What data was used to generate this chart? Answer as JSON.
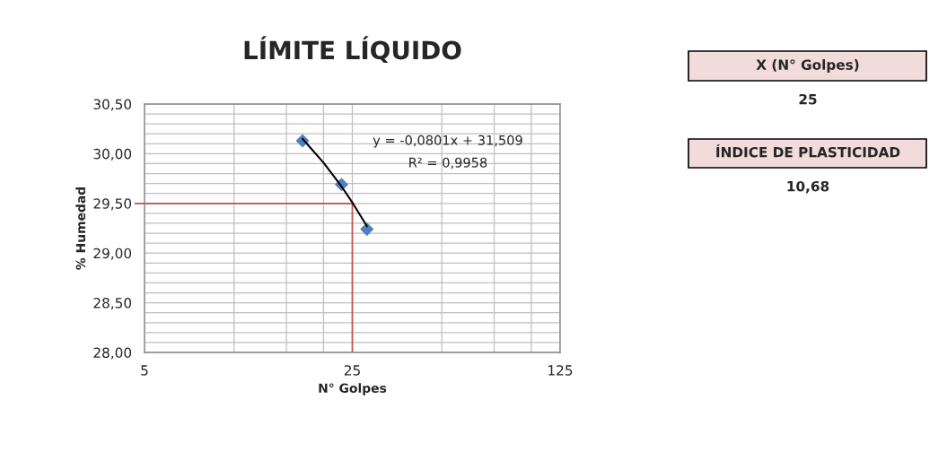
{
  "chart_data": {
    "type": "scatter",
    "title": "LÍMITE LÍQUIDO",
    "xlabel": "N° Golpes",
    "ylabel": "% Humedad",
    "log": "x",
    "grid": true,
    "marker": "diamond",
    "xlim": [
      5,
      125
    ],
    "xticks": [
      5,
      {
        "value": 10,
        "label": null
      },
      {
        "value": 15,
        "label": null
      },
      {
        "value": 20,
        "label": null
      },
      25,
      {
        "value": 50,
        "label": null
      },
      {
        "value": 75,
        "label": null
      },
      {
        "value": 100,
        "label": null
      },
      125
    ],
    "ylim": [
      28,
      30.5
    ],
    "yticks": [
      {
        "value": 28,
        "label": "28,00"
      },
      {
        "value": 28.1,
        "label": null
      },
      {
        "value": 28.2,
        "label": null
      },
      {
        "value": 28.3,
        "label": null
      },
      {
        "value": 28.4,
        "label": null
      },
      {
        "value": 28.5,
        "label": "28,50"
      },
      {
        "value": 28.6,
        "label": null
      },
      {
        "value": 28.7,
        "label": null
      },
      {
        "value": 28.8,
        "label": null
      },
      {
        "value": 28.9,
        "label": null
      },
      {
        "value": 29,
        "label": "29,00"
      },
      {
        "value": 29.1,
        "label": null
      },
      {
        "value": 29.2,
        "label": null
      },
      {
        "value": 29.3,
        "label": null
      },
      {
        "value": 29.4,
        "label": null
      },
      {
        "value": 29.5,
        "label": "29,50"
      },
      {
        "value": 29.6,
        "label": null
      },
      {
        "value": 29.7,
        "label": null
      },
      {
        "value": 29.8,
        "label": null
      },
      {
        "value": 29.9,
        "label": null
      },
      {
        "value": 30,
        "label": "30,00"
      },
      {
        "value": 30.1,
        "label": null
      },
      {
        "value": 30.2,
        "label": null
      },
      {
        "value": 30.3,
        "label": null
      },
      {
        "value": 30.4,
        "label": null
      },
      {
        "value": 30.5,
        "label": "30,50"
      }
    ],
    "series": [
      {
        "color": "#4f81bd",
        "x": [
          17,
          23,
          28
        ],
        "values": [
          30.13,
          29.69,
          29.24
        ]
      },
      {
        "type": "line",
        "color": "#000000",
        "marker": "none",
        "line_style": "solid",
        "x": [
          17,
          20,
          23,
          25,
          28
        ],
        "values": [
          30.15,
          29.91,
          29.67,
          29.51,
          29.27
        ]
      }
    ],
    "ref_lines": [
      {
        "axis": "x",
        "value": 25,
        "color": "#c0504d"
      },
      {
        "axis": "y",
        "value": 29.5,
        "color": "#c0504d"
      }
    ],
    "annotations": [
      "y = -0,0801x + 31,509",
      "R² = 0,9958",
      "X (N° Golpes)",
      "25",
      "ÍNDICE DE PLASTICIDAD",
      "10,68"
    ]
  }
}
